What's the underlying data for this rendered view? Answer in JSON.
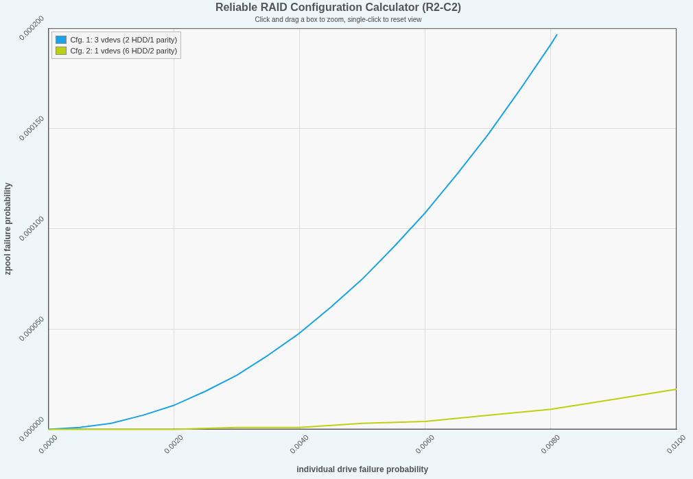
{
  "chart_data": {
    "type": "line",
    "title": "Reliable RAID Configuration Calculator (R2-C2)",
    "subtitle": "Click and drag a box to zoom, single-click to reset view",
    "xlabel": "individual drive failure probability",
    "ylabel": "zpool failure probability",
    "xlim": [
      0,
      0.01
    ],
    "ylim": [
      0,
      0.0002
    ],
    "xticks": [
      {
        "value": 0,
        "label": "0.0000"
      },
      {
        "value": 0.002,
        "label": "0.0020"
      },
      {
        "value": 0.004,
        "label": "0.0040"
      },
      {
        "value": 0.006,
        "label": "0.0060"
      },
      {
        "value": 0.008,
        "label": "0.0080"
      },
      {
        "value": 0.01,
        "label": "0.0100"
      }
    ],
    "yticks": [
      {
        "value": 0,
        "label": "0.000000"
      },
      {
        "value": 5e-05,
        "label": "0.000050"
      },
      {
        "value": 0.0001,
        "label": "0.000100"
      },
      {
        "value": 0.00015,
        "label": "0.000150"
      },
      {
        "value": 0.0002,
        "label": "0.000200"
      }
    ],
    "grid": true,
    "legend": "top left",
    "marker": "none",
    "line_style": "solid",
    "series": [
      {
        "name": "Cfg. 1: 3 vdevs (2 HDD/1 parity)",
        "color": "#1aa3e8",
        "x": [
          0,
          0.0005,
          0.001,
          0.0015,
          0.002,
          0.0025,
          0.003,
          0.0035,
          0.004,
          0.0045,
          0.005,
          0.0055,
          0.006,
          0.0065,
          0.007,
          0.0075,
          0.008,
          0.0081
        ],
        "values": [
          0,
          1e-06,
          3e-06,
          7e-06,
          1.2e-05,
          1.9e-05,
          2.7e-05,
          3.7e-05,
          4.8e-05,
          6.1e-05,
          7.5e-05,
          9.1e-05,
          0.000108,
          0.000127,
          0.000147,
          0.000169,
          0.000192,
          0.000197
        ]
      },
      {
        "name": "Cfg. 2: 1 vdevs (6 HDD/2 parity)",
        "color": "#bcd20e",
        "x": [
          0,
          0.001,
          0.002,
          0.003,
          0.004,
          0.005,
          0.006,
          0.007,
          0.008,
          0.009,
          0.01
        ],
        "values": [
          0,
          0,
          0,
          1e-06,
          1e-06,
          3e-06,
          4e-06,
          7e-06,
          1e-05,
          1.5e-05,
          2e-05
        ]
      }
    ]
  }
}
